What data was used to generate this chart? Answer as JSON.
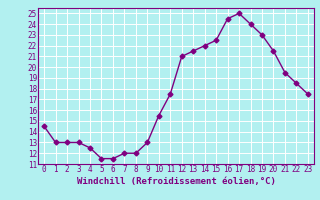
{
  "x": [
    0,
    1,
    2,
    3,
    4,
    5,
    6,
    7,
    8,
    9,
    10,
    11,
    12,
    13,
    14,
    15,
    16,
    17,
    18,
    19,
    20,
    21,
    22,
    23
  ],
  "y": [
    14.5,
    13.0,
    13.0,
    13.0,
    12.5,
    11.5,
    11.5,
    12.0,
    12.0,
    13.0,
    15.5,
    17.5,
    21.0,
    21.5,
    22.0,
    22.5,
    24.5,
    25.0,
    24.0,
    23.0,
    21.5,
    19.5,
    18.5,
    17.5
  ],
  "line_color": "#800080",
  "marker": "D",
  "markersize": 2.5,
  "linewidth": 1,
  "xlabel": "Windchill (Refroidissement éolien,°C)",
  "ylabel": "",
  "xlim": [
    -0.5,
    23.5
  ],
  "ylim": [
    11,
    25.5
  ],
  "yticks": [
    11,
    12,
    13,
    14,
    15,
    16,
    17,
    18,
    19,
    20,
    21,
    22,
    23,
    24,
    25
  ],
  "xticks": [
    0,
    1,
    2,
    3,
    4,
    5,
    6,
    7,
    8,
    9,
    10,
    11,
    12,
    13,
    14,
    15,
    16,
    17,
    18,
    19,
    20,
    21,
    22,
    23
  ],
  "bg_color": "#b2f0f0",
  "grid_color": "#ffffff",
  "tick_color": "#800080",
  "label_color": "#800080",
  "xlabel_fontsize": 6.5,
  "tick_fontsize": 5.5
}
